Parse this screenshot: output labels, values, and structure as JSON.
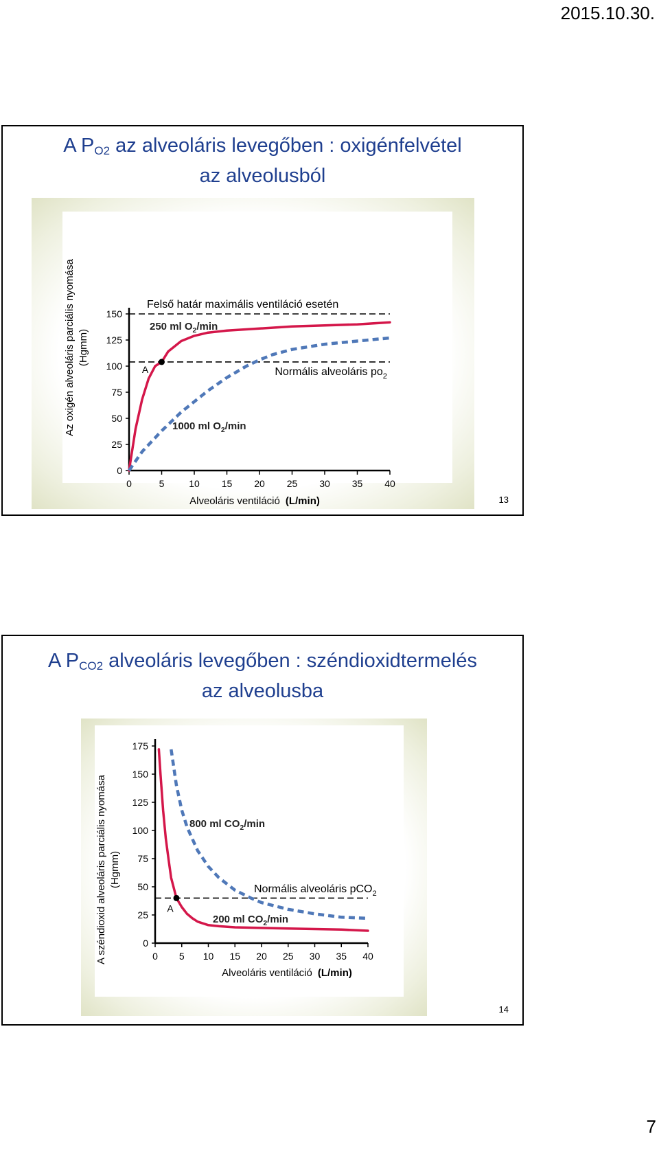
{
  "header": {
    "date": "2015.10.30."
  },
  "footer": {
    "page_number": "7"
  },
  "slides": [
    {
      "title_prefix": "A P",
      "title_sub": "O2",
      "title_rest": " az alveoláris levegőben : oxigénfelvétel",
      "title_line2": "az alveolusból",
      "slide_number": "13",
      "ylabel_line1": "Az oxigén alveoláris parciális nyomása",
      "ylabel_line2": "(Hgmm)",
      "xlabel_main": "Alveoláris ventiláció",
      "xlabel_unit": "(L/min)"
    },
    {
      "title_prefix": "A P",
      "title_sub": "CO2",
      "title_rest": " alveoláris levegőben : széndioxidtermelés",
      "title_line2": "az alveolusba",
      "slide_number": "14",
      "ylabel_line1": "A széndioxid alveoláris parciális nyomása",
      "ylabel_line2": "(Hgmm)",
      "xlabel_main": "Alveoláris ventiláció",
      "xlabel_unit": "(L/min)"
    }
  ],
  "chart_data": [
    {
      "type": "line",
      "xlim": [
        0,
        40
      ],
      "ylim": [
        0,
        150
      ],
      "xticks": [
        0,
        5,
        10,
        15,
        20,
        25,
        30,
        35,
        40
      ],
      "yticks": [
        0,
        25,
        50,
        75,
        100,
        125,
        150
      ],
      "series": [
        {
          "name": "250 ml O2/min",
          "color": "#d4174a",
          "style": "solid",
          "x": [
            0,
            1,
            2,
            3,
            4,
            5,
            6,
            8,
            10,
            12,
            15,
            20,
            25,
            30,
            35,
            40
          ],
          "y": [
            0,
            40,
            68,
            88,
            100,
            104,
            114,
            124,
            129,
            132,
            134,
            136,
            138,
            139,
            140,
            142
          ]
        },
        {
          "name": "1000 ml O2/min",
          "color": "#4f78b8",
          "style": "dashed",
          "x": [
            0,
            2,
            5,
            8,
            10,
            12,
            15,
            18,
            20,
            22,
            25,
            30,
            35,
            40
          ],
          "y": [
            0,
            18,
            38,
            56,
            66,
            76,
            89,
            100,
            106,
            111,
            116,
            121,
            124,
            127
          ]
        }
      ],
      "reference_lines": [
        {
          "y": 150,
          "label": "Felső határ maximális ventiláció esetén"
        },
        {
          "y": 104,
          "label": "Normális alveoláris po",
          "label_sub": "2"
        }
      ],
      "point": {
        "x": 5,
        "y": 104,
        "label": "A"
      }
    },
    {
      "type": "line",
      "xlim": [
        0,
        40
      ],
      "ylim": [
        0,
        175
      ],
      "xticks": [
        0,
        5,
        10,
        15,
        20,
        25,
        30,
        35,
        40
      ],
      "yticks": [
        0,
        25,
        50,
        75,
        100,
        125,
        150,
        175
      ],
      "series": [
        {
          "name": "800 ml CO2/min",
          "color": "#4f78b8",
          "style": "dashed",
          "x": [
            3,
            4,
            5,
            6,
            8,
            10,
            12,
            15,
            18,
            20,
            25,
            30,
            35,
            40
          ],
          "y": [
            172,
            140,
            118,
            103,
            82,
            68,
            58,
            47,
            40,
            36,
            30,
            26,
            23,
            22
          ]
        },
        {
          "name": "200 ml CO2/min",
          "color": "#d4174a",
          "style": "solid",
          "x": [
            0.7,
            1,
            1.5,
            2,
            2.5,
            3,
            4,
            5,
            6,
            7,
            8,
            10,
            12,
            15,
            20,
            25,
            30,
            35,
            40
          ],
          "y": [
            172,
            150,
            118,
            93,
            75,
            58,
            40,
            32,
            26,
            22,
            19,
            16,
            15,
            14,
            13.5,
            13,
            12.5,
            12,
            11
          ]
        }
      ],
      "reference_lines": [
        {
          "y": 40,
          "label": "Normális alveoláris pCO",
          "label_sub": "2"
        }
      ],
      "point": {
        "x": 4,
        "y": 40,
        "label": "A"
      }
    }
  ]
}
